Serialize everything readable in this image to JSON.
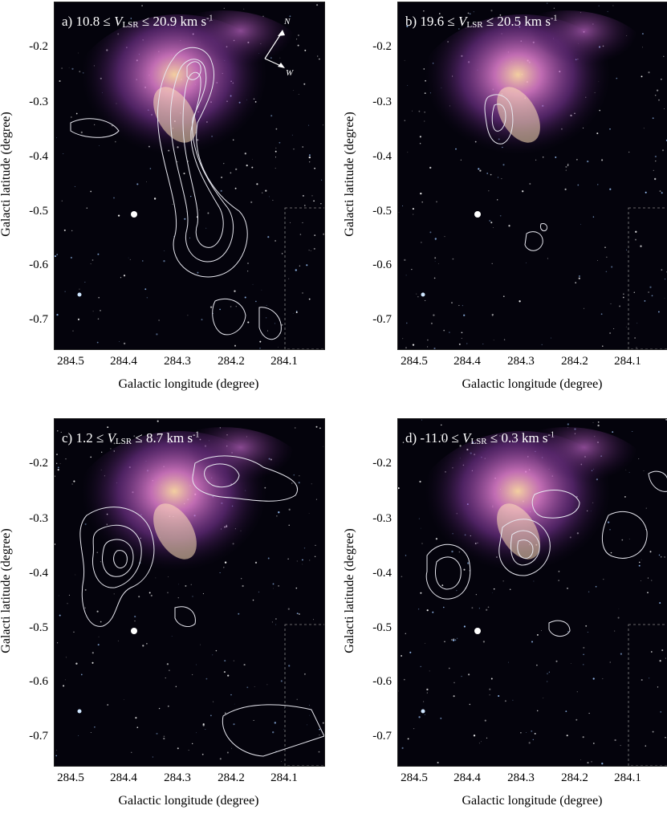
{
  "figure": {
    "panels": [
      {
        "id": "a",
        "prefix": "a)",
        "vlabel": "V",
        "vsub": "LSR",
        "range_pre": "10.8 ≤ ",
        "range_post": " ≤  20.9 km s",
        "unit_sup": "-1"
      },
      {
        "id": "b",
        "prefix": "b)",
        "vlabel": "V",
        "vsub": "LSR",
        "range_pre": "19.6 ≤ ",
        "range_post": " ≤  20.5 km s",
        "unit_sup": "-1"
      },
      {
        "id": "c",
        "prefix": "c)",
        "vlabel": "V",
        "vsub": "LSR",
        "range_pre": "  1.2 ≤ ",
        "range_post": " ≤  8.7 km s",
        "unit_sup": "-1"
      },
      {
        "id": "d",
        "prefix": "d)",
        "vlabel": "V",
        "vsub": "LSR",
        "range_pre": "-11.0 ≤ ",
        "range_post": " ≤  0.3 km s",
        "unit_sup": "-1"
      }
    ],
    "ylabel": "Galacti latitude (degree)",
    "xlabel": "Galactic longitude (degree)",
    "yticks": [
      "-0.2",
      "-0.3",
      "-0.4",
      "-0.5",
      "-0.6",
      "-0.7"
    ],
    "xticks": [
      "284.5",
      "284.4",
      "284.3",
      "284.2",
      "284.1"
    ],
    "compass": {
      "north": "N",
      "west": "W"
    }
  },
  "colors": {
    "background": "#04030c",
    "contour": "#e8e8f0",
    "nebula_pink": "#e27fd0",
    "nebula_purple": "#8a3ca8",
    "core": "#ffd9a8"
  }
}
